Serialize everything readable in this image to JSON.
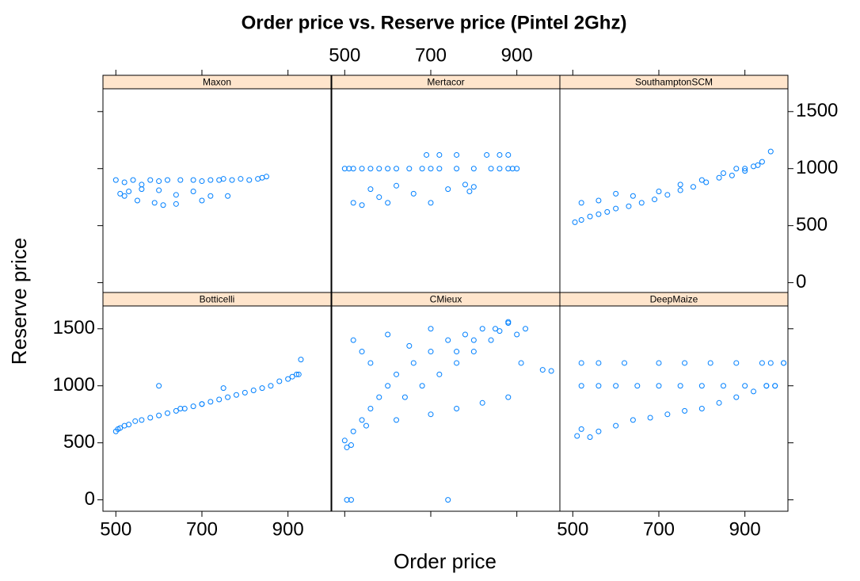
{
  "chart_data": {
    "type": "scatter",
    "title": "Order price vs. Reserve price (Pintel 2Ghz)",
    "x_label": "Order price",
    "y_label": "Reserve price",
    "color": "#0080ff",
    "xlim": [
      470,
      1000
    ],
    "ylim": [
      -100,
      1700
    ],
    "xticks": [
      500,
      700,
      900
    ],
    "yticks": [
      0,
      500,
      1000,
      1500
    ],
    "panels": [
      {
        "name": "Maxon",
        "x": [
          500,
          520,
          540,
          560,
          580,
          600,
          620,
          650,
          680,
          700,
          720,
          740,
          750,
          770,
          790,
          810,
          830,
          840,
          850,
          510,
          530,
          560,
          600,
          640,
          680,
          720,
          520,
          550,
          590,
          610,
          640,
          700,
          760
        ],
        "y": [
          900,
          880,
          900,
          860,
          900,
          890,
          900,
          900,
          900,
          890,
          900,
          900,
          910,
          900,
          910,
          900,
          910,
          920,
          930,
          780,
          800,
          820,
          810,
          770,
          800,
          760,
          760,
          720,
          700,
          680,
          690,
          720,
          760
        ]
      },
      {
        "name": "Mertacor",
        "x": [
          500,
          510,
          520,
          540,
          560,
          580,
          600,
          620,
          650,
          680,
          700,
          720,
          760,
          800,
          840,
          860,
          880,
          900,
          890,
          520,
          540,
          560,
          580,
          600,
          620,
          660,
          700,
          740,
          780,
          790,
          800,
          690,
          720,
          760,
          830,
          860,
          880
        ],
        "y": [
          1000,
          1000,
          1000,
          1000,
          1000,
          1000,
          1000,
          1000,
          1000,
          1000,
          1000,
          1000,
          1000,
          1000,
          1000,
          1000,
          1000,
          1000,
          1000,
          700,
          680,
          820,
          750,
          700,
          850,
          780,
          700,
          820,
          860,
          800,
          840,
          1120,
          1120,
          1120,
          1120,
          1120,
          1120
        ]
      },
      {
        "name": "SouthamptonSCM",
        "x": [
          505,
          520,
          540,
          560,
          580,
          600,
          630,
          660,
          690,
          720,
          750,
          780,
          810,
          840,
          870,
          900,
          930,
          960,
          520,
          560,
          600,
          640,
          700,
          750,
          800,
          850,
          880,
          900,
          920,
          940
        ],
        "y": [
          530,
          550,
          580,
          600,
          620,
          650,
          670,
          700,
          730,
          770,
          810,
          840,
          880,
          920,
          940,
          980,
          1030,
          1150,
          700,
          720,
          780,
          760,
          800,
          860,
          900,
          960,
          1000,
          1000,
          1020,
          1060
        ]
      },
      {
        "name": "Botticelli",
        "x": [
          500,
          505,
          510,
          520,
          530,
          545,
          560,
          580,
          600,
          620,
          640,
          660,
          680,
          700,
          720,
          740,
          760,
          780,
          800,
          820,
          840,
          860,
          880,
          900,
          910,
          920,
          925,
          930,
          600,
          650,
          700,
          750
        ],
        "y": [
          600,
          620,
          630,
          650,
          660,
          690,
          700,
          720,
          740,
          760,
          780,
          800,
          820,
          840,
          860,
          880,
          900,
          920,
          940,
          960,
          980,
          1000,
          1040,
          1060,
          1080,
          1100,
          1100,
          1230,
          1000,
          800,
          840,
          980
        ]
      },
      {
        "name": "CMieux",
        "x": [
          500,
          505,
          515,
          520,
          540,
          560,
          580,
          600,
          620,
          640,
          660,
          680,
          700,
          720,
          740,
          760,
          780,
          800,
          820,
          840,
          860,
          880,
          900,
          920,
          520,
          540,
          560,
          600,
          650,
          700,
          760,
          800,
          850,
          880,
          910,
          505,
          515,
          740,
          960,
          980,
          550,
          620,
          700,
          760,
          820,
          880
        ],
        "y": [
          520,
          0,
          0,
          600,
          700,
          800,
          900,
          1000,
          1100,
          900,
          1200,
          1000,
          1300,
          1100,
          1400,
          1200,
          1450,
          1300,
          1500,
          1400,
          1480,
          1550,
          1450,
          1500,
          1400,
          1300,
          1200,
          1450,
          1350,
          1500,
          1300,
          1400,
          1500,
          1560,
          1200,
          460,
          480,
          0,
          1140,
          1130,
          650,
          700,
          750,
          800,
          850,
          900
        ]
      },
      {
        "name": "DeepMaize",
        "x": [
          510,
          520,
          540,
          560,
          600,
          640,
          680,
          720,
          760,
          800,
          840,
          880,
          920,
          950,
          970,
          990,
          520,
          560,
          600,
          650,
          700,
          750,
          800,
          850,
          900,
          950,
          970,
          520,
          560,
          620,
          700,
          760,
          820,
          880,
          940,
          960,
          990
        ],
        "y": [
          560,
          620,
          550,
          600,
          650,
          700,
          720,
          750,
          780,
          800,
          850,
          900,
          950,
          1000,
          1000,
          1200,
          1000,
          1000,
          1000,
          1000,
          1000,
          1000,
          1000,
          1000,
          1000,
          1000,
          1000,
          1200,
          1200,
          1200,
          1200,
          1200,
          1200,
          1200,
          1200,
          1200,
          1200
        ]
      }
    ]
  }
}
